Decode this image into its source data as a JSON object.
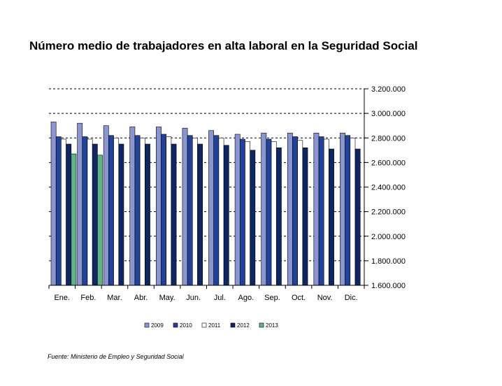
{
  "title": "Número medio de trabajadores en alta laboral en la Seguridad Social",
  "source": "Fuente: Ministerio de Empleo y Seguridad Social",
  "chart_data": {
    "type": "bar",
    "categories": [
      "Ene.",
      "Feb.",
      "Mar.",
      "Abr.",
      "May.",
      "Jun.",
      "Jul.",
      "Ago.",
      "Sep.",
      "Oct.",
      "Nov.",
      "Dic."
    ],
    "ylim": [
      1600000,
      3200000
    ],
    "yticks": [
      1600000,
      1800000,
      2000000,
      2200000,
      2400000,
      2600000,
      2800000,
      3000000,
      3200000
    ],
    "ytick_labels": [
      "1.600.000",
      "1.800.000",
      "2.000.000",
      "2.200.000",
      "2.400.000",
      "2.600.000",
      "2.800.000",
      "3.000.000",
      "3.200.000"
    ],
    "grid": "dashed horizontal",
    "legend_position": "bottom",
    "series": [
      {
        "name": "2009",
        "color": "#8b96d0",
        "values": [
          2930000,
          2920000,
          2900000,
          2890000,
          2890000,
          2880000,
          2860000,
          2830000,
          2840000,
          2840000,
          2840000,
          2840000
        ]
      },
      {
        "name": "2010",
        "color": "#22429a",
        "values": [
          2810000,
          2810000,
          2820000,
          2820000,
          2830000,
          2820000,
          2820000,
          2790000,
          2790000,
          2810000,
          2810000,
          2820000
        ]
      },
      {
        "name": "2011",
        "color": "#ffffff",
        "values": [
          2790000,
          2790000,
          2800000,
          2800000,
          2810000,
          2800000,
          2800000,
          2770000,
          2770000,
          2780000,
          2790000,
          2800000
        ]
      },
      {
        "name": "2012",
        "color": "#102660",
        "values": [
          2750000,
          2750000,
          2750000,
          2750000,
          2750000,
          2750000,
          2740000,
          2700000,
          2720000,
          2720000,
          2710000,
          2710000
        ]
      },
      {
        "name": "2013",
        "color": "#5fb38a",
        "values": [
          2670000,
          2660000,
          null,
          null,
          null,
          null,
          null,
          null,
          null,
          null,
          null,
          null
        ]
      }
    ]
  }
}
